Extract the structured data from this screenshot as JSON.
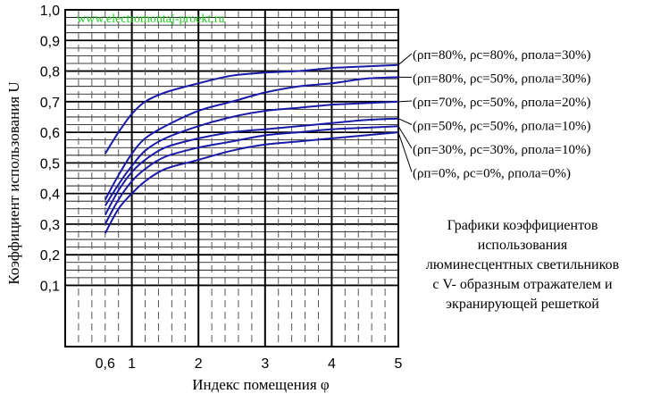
{
  "chart_data": {
    "type": "line",
    "watermark": "www.electromontaj-proekt.ru",
    "title": "",
    "xlabel": "Индекс помещения  φ",
    "ylabel": "Коэффициент использования U",
    "xlim": [
      0,
      5
    ],
    "ylim": [
      -0.1,
      1.0
    ],
    "x_ticks": [
      0.6,
      1,
      2,
      3,
      4,
      5
    ],
    "x_tick_labels": [
      "0,6",
      "1",
      "2",
      "3",
      "4",
      "5"
    ],
    "y_ticks": [
      0.1,
      0.2,
      0.3,
      0.4,
      0.5,
      0.6,
      0.7,
      0.8,
      0.9,
      1.0
    ],
    "y_tick_labels": [
      "0,1",
      "0,2",
      "0,3",
      "0,4",
      "0,5",
      "0,6",
      "0,7",
      "0,8",
      "0,9",
      "1,0"
    ],
    "grid": true,
    "line_color": "#1a1aa6",
    "series": [
      {
        "name": "(ρп=80%, ρс=80%, ρпола=30%)",
        "x": [
          0.6,
          0.8,
          1.0,
          1.2,
          1.5,
          2.0,
          2.5,
          3.0,
          3.5,
          4.0,
          4.5,
          5.0
        ],
        "y": [
          0.53,
          0.6,
          0.66,
          0.7,
          0.73,
          0.76,
          0.785,
          0.795,
          0.8,
          0.81,
          0.815,
          0.82
        ]
      },
      {
        "name": "(ρп=80%, ρс=50%, ρпола=30%)",
        "x": [
          0.6,
          0.8,
          1.0,
          1.2,
          1.5,
          2.0,
          2.5,
          3.0,
          3.5,
          4.0,
          4.5,
          5.0
        ],
        "y": [
          0.38,
          0.46,
          0.53,
          0.58,
          0.62,
          0.67,
          0.7,
          0.73,
          0.75,
          0.76,
          0.775,
          0.78
        ]
      },
      {
        "name": "(ρп=70%, ρс=50%, ρпола=20%)",
        "x": [
          0.6,
          0.8,
          1.0,
          1.2,
          1.5,
          2.0,
          2.5,
          3.0,
          3.5,
          4.0,
          4.5,
          5.0
        ],
        "y": [
          0.36,
          0.43,
          0.49,
          0.54,
          0.58,
          0.62,
          0.65,
          0.67,
          0.68,
          0.69,
          0.695,
          0.7
        ]
      },
      {
        "name": "(ρп=50%, ρс=50%, ρпола=10%)",
        "x": [
          0.6,
          0.8,
          1.0,
          1.2,
          1.5,
          2.0,
          2.5,
          3.0,
          3.5,
          4.0,
          4.5,
          5.0
        ],
        "y": [
          0.33,
          0.41,
          0.47,
          0.51,
          0.55,
          0.58,
          0.6,
          0.61,
          0.62,
          0.63,
          0.64,
          0.645
        ]
      },
      {
        "name": "(ρп=30%, ρс=30%, ρпола=10%)",
        "x": [
          0.6,
          0.8,
          1.0,
          1.2,
          1.5,
          2.0,
          2.5,
          3.0,
          3.5,
          4.0,
          4.5,
          5.0
        ],
        "y": [
          0.3,
          0.38,
          0.44,
          0.48,
          0.52,
          0.55,
          0.57,
          0.59,
          0.6,
          0.61,
          0.615,
          0.62
        ]
      },
      {
        "name": "(ρп=0%,  ρс=0%,  ρпола=0%)",
        "x": [
          0.6,
          0.8,
          1.0,
          1.2,
          1.5,
          2.0,
          2.5,
          3.0,
          3.5,
          4.0,
          4.5,
          5.0
        ],
        "y": [
          0.27,
          0.35,
          0.4,
          0.44,
          0.48,
          0.51,
          0.54,
          0.56,
          0.57,
          0.58,
          0.59,
          0.6
        ]
      }
    ]
  },
  "caption": [
    "Графики коэффициентов",
    "использования",
    "люминесцентных светильников",
    "с V- образным отражателем и",
    "экранирующей решеткой"
  ]
}
